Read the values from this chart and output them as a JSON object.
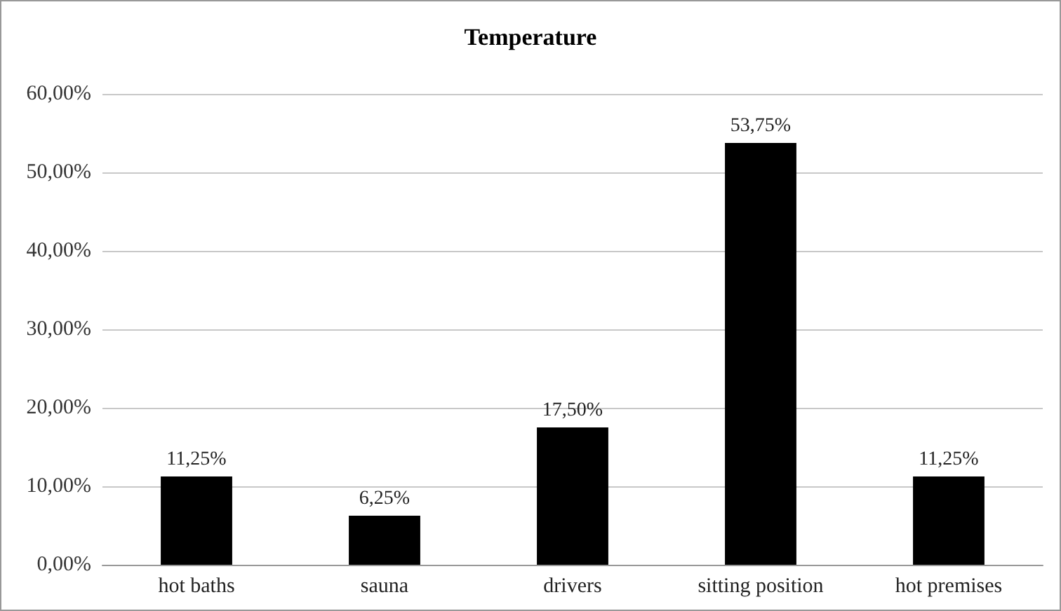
{
  "chart_data": {
    "type": "bar",
    "title": "Temperature",
    "categories": [
      "hot baths",
      "sauna",
      "drivers",
      "sitting position",
      "hot premises"
    ],
    "values": [
      11.25,
      6.25,
      17.5,
      53.75,
      11.25
    ],
    "value_labels": [
      "11,25%",
      "6,25%",
      "17,50%",
      "53,75%",
      "11,25%"
    ],
    "color": "#000000",
    "ylim": [
      0,
      60
    ],
    "yticks": [
      {
        "value": 0,
        "label": "0,00%"
      },
      {
        "value": 10,
        "label": "10,00%"
      },
      {
        "value": 20,
        "label": "20,00%"
      },
      {
        "value": 30,
        "label": "30,00%"
      },
      {
        "value": 40,
        "label": "40,00%"
      },
      {
        "value": 50,
        "label": "50,00%"
      },
      {
        "value": 60,
        "label": "60,00%"
      }
    ],
    "grid": "y"
  }
}
